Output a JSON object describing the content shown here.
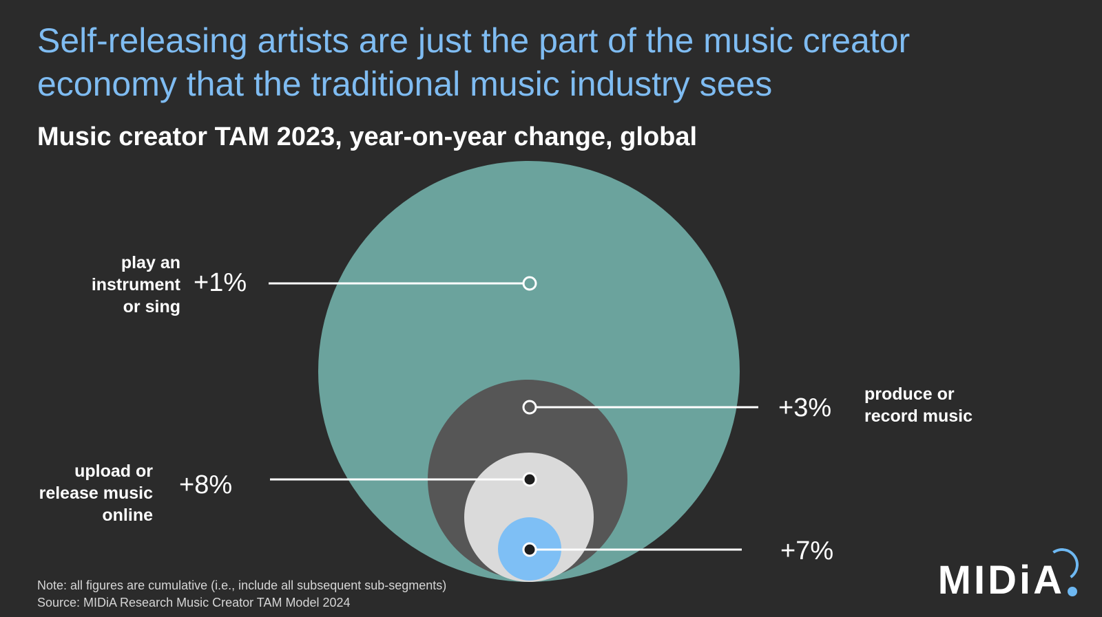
{
  "title": "Self-releasing artists are just the part of the music creator economy that the traditional music industry sees",
  "subtitle": "Music creator TAM 2023, year-on-year change, global",
  "colors": {
    "background": "#2b2b2b",
    "title": "#7fbcf2",
    "play_instrument": "#6ba39d",
    "produce_record": "#565656",
    "upload_release": "#dadada",
    "self_release": "#7ebff5",
    "logo_accent": "#6eb8f2"
  },
  "chart_data": {
    "type": "nested-bubble",
    "segments": [
      {
        "label": "play an instrument or sing",
        "change": "+1%",
        "value_pct": 1,
        "color": "#6ba39d"
      },
      {
        "label": "produce or record music",
        "change": "+3%",
        "value_pct": 3,
        "color": "#565656"
      },
      {
        "label": "upload or release music online",
        "change": "+8%",
        "value_pct": 8,
        "color": "#dadada"
      },
      {
        "label": "",
        "change": "+7%",
        "value_pct": 7,
        "color": "#7ebff5"
      }
    ]
  },
  "labels": {
    "play": [
      "play an",
      "instrument",
      "or sing"
    ],
    "produce": [
      "produce or",
      "record music"
    ],
    "upload": [
      "upload or",
      "release music",
      "online"
    ]
  },
  "footnotes": {
    "note": "Note: all figures are cumulative (i.e., include all subsequent sub-segments)",
    "source": "Source: MIDiA Research Music Creator TAM Model 2024"
  },
  "logo": {
    "text": "MIDiA"
  }
}
